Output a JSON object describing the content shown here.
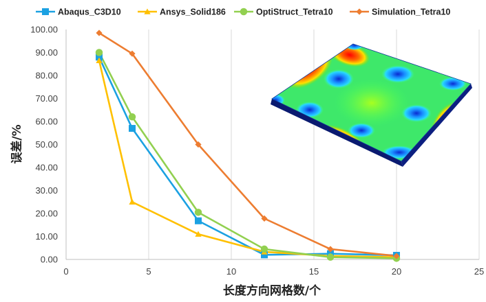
{
  "chart_data": {
    "type": "line",
    "title": "",
    "xlabel": "长度方向网格数/个",
    "ylabel": "误差/%",
    "xlim": [
      0,
      25
    ],
    "ylim": [
      0,
      100
    ],
    "x_ticks": [
      "0",
      "5",
      "10",
      "15",
      "20",
      "25"
    ],
    "y_ticks": [
      "0.00",
      "10.00",
      "20.00",
      "30.00",
      "40.00",
      "50.00",
      "60.00",
      "70.00",
      "80.00",
      "90.00",
      "100.00"
    ],
    "grid": "vertical",
    "legend_position": "top",
    "series": [
      {
        "name": "Abaqus_C3D10",
        "color": "#1BA1E2",
        "marker": "square",
        "x": [
          2,
          4,
          8,
          12,
          16,
          20
        ],
        "y": [
          88.0,
          57.0,
          16.8,
          2.0,
          2.5,
          1.8
        ]
      },
      {
        "name": "Ansys_Solid186",
        "color": "#FFC000",
        "marker": "triangle",
        "x": [
          2,
          4,
          8,
          12,
          16,
          20
        ],
        "y": [
          86.5,
          25.0,
          11.0,
          3.3,
          1.5,
          1.0
        ]
      },
      {
        "name": "OptiStruct_Tetra10",
        "color": "#92D050",
        "marker": "circle",
        "x": [
          2,
          4,
          8,
          12,
          16,
          20
        ],
        "y": [
          90.0,
          62.0,
          20.5,
          4.5,
          1.0,
          0.5
        ]
      },
      {
        "name": "Simulation_Tetra10",
        "color": "#ED7D31",
        "marker": "diamond",
        "x": [
          2,
          4,
          8,
          12,
          16,
          20
        ],
        "y": [
          98.5,
          89.5,
          50.0,
          17.8,
          4.5,
          1.5
        ]
      }
    ]
  }
}
